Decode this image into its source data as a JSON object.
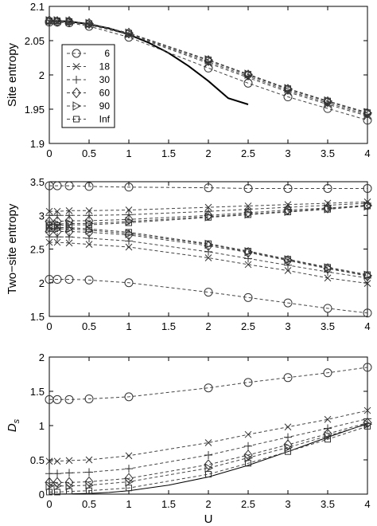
{
  "chart_data": [
    {
      "type": "line",
      "id": "site",
      "ylabel": "Site entropy",
      "xlim": [
        0,
        4
      ],
      "ylim": [
        1.9,
        2.1
      ],
      "xticks": [
        "0",
        "0.5",
        "1",
        "1.5",
        "2",
        "2.5",
        "3",
        "3.5",
        "4"
      ],
      "yticks": [
        "1.9",
        "1.95",
        "2",
        "2.05",
        "2.1"
      ],
      "legend_placement": "top-left",
      "legend": [
        "6",
        "18",
        "30",
        "60",
        "90",
        "Inf"
      ],
      "x": [
        0,
        0.1,
        0.25,
        0.5,
        1,
        2,
        2.5,
        3,
        3.5,
        4
      ],
      "series": [
        {
          "name": "6",
          "marker": "circle",
          "values": [
            2.077,
            2.077,
            2.076,
            2.071,
            2.055,
            2.01,
            1.988,
            1.968,
            1.951,
            1.934
          ]
        },
        {
          "name": "18",
          "marker": "x",
          "values": [
            2.078,
            2.078,
            2.077,
            2.073,
            2.059,
            2.017,
            1.996,
            1.975,
            1.957,
            1.94
          ]
        },
        {
          "name": "30",
          "marker": "plus",
          "values": [
            2.079,
            2.078,
            2.078,
            2.074,
            2.06,
            2.019,
            1.998,
            1.977,
            1.959,
            1.942
          ]
        },
        {
          "name": "60",
          "marker": "diamond",
          "values": [
            2.079,
            2.078,
            2.078,
            2.075,
            2.061,
            2.021,
            2.0,
            1.979,
            1.961,
            1.944
          ]
        },
        {
          "name": "90",
          "marker": "triangle-right",
          "values": [
            2.079,
            2.079,
            2.078,
            2.075,
            2.061,
            2.022,
            2.001,
            1.98,
            1.962,
            1.945
          ]
        },
        {
          "name": "Inf",
          "marker": "square",
          "values": [
            2.079,
            2.079,
            2.078,
            2.075,
            2.061,
            2.022,
            2.001,
            1.98,
            1.962,
            1.945
          ]
        }
      ],
      "solid_curve": {
        "x": [
          0,
          0.25,
          0.5,
          0.75,
          1,
          1.25,
          1.5,
          1.75,
          2,
          2.25,
          2.5
        ],
        "values": [
          2.079,
          2.078,
          2.074,
          2.068,
          2.059,
          2.047,
          2.032,
          2.013,
          1.991,
          1.966,
          1.957
        ]
      }
    },
    {
      "type": "line",
      "id": "two-site",
      "ylabel": "Two−site entropy",
      "xlim": [
        0,
        4
      ],
      "ylim": [
        1.5,
        3.5
      ],
      "xticks": [
        "0",
        "0.5",
        "1",
        "1.5",
        "2",
        "2.5",
        "3",
        "3.5",
        "4"
      ],
      "yticks": [
        "1.5",
        "2",
        "2.5",
        "3",
        "3.5"
      ],
      "x": [
        0,
        0.1,
        0.25,
        0.5,
        1,
        2,
        2.5,
        3,
        3.5,
        4
      ],
      "series": [
        {
          "name": "6",
          "marker": "circle",
          "values": [
            3.44,
            3.44,
            3.44,
            3.43,
            3.42,
            3.41,
            3.4,
            3.4,
            3.4,
            3.4
          ]
        },
        {
          "name": "6",
          "marker": "circle",
          "values": [
            2.05,
            2.05,
            2.05,
            2.04,
            2.0,
            1.86,
            1.78,
            1.7,
            1.62,
            1.55
          ]
        },
        {
          "name": "18",
          "marker": "x",
          "values": [
            3.06,
            3.06,
            3.07,
            3.07,
            3.08,
            3.12,
            3.14,
            3.16,
            3.18,
            3.2
          ]
        },
        {
          "name": "18",
          "marker": "x",
          "values": [
            2.6,
            2.6,
            2.59,
            2.57,
            2.53,
            2.37,
            2.27,
            2.18,
            2.07,
            1.99
          ]
        },
        {
          "name": "30",
          "marker": "plus",
          "values": [
            3.0,
            3.0,
            3.0,
            3.0,
            3.01,
            3.06,
            3.09,
            3.12,
            3.15,
            3.18
          ]
        },
        {
          "name": "30",
          "marker": "plus",
          "values": [
            2.68,
            2.68,
            2.68,
            2.66,
            2.62,
            2.46,
            2.36,
            2.26,
            2.16,
            2.07
          ]
        },
        {
          "name": "60",
          "marker": "diamond",
          "values": [
            2.91,
            2.91,
            2.92,
            2.92,
            2.94,
            3.0,
            3.04,
            3.08,
            3.11,
            3.15
          ]
        },
        {
          "name": "60",
          "marker": "diamond",
          "values": [
            2.76,
            2.76,
            2.76,
            2.75,
            2.71,
            2.55,
            2.45,
            2.33,
            2.21,
            2.1
          ]
        },
        {
          "name": "90",
          "marker": "triangle-right",
          "values": [
            2.87,
            2.87,
            2.88,
            2.88,
            2.91,
            2.98,
            3.02,
            3.06,
            3.1,
            3.14
          ]
        },
        {
          "name": "90",
          "marker": "triangle-right",
          "values": [
            2.8,
            2.8,
            2.8,
            2.78,
            2.73,
            2.57,
            2.46,
            2.34,
            2.22,
            2.11
          ]
        },
        {
          "name": "Inf",
          "marker": "square",
          "values": [
            2.85,
            2.85,
            2.86,
            2.86,
            2.89,
            2.97,
            3.01,
            3.05,
            3.09,
            3.14
          ]
        },
        {
          "name": "Inf",
          "marker": "square",
          "values": [
            2.82,
            2.82,
            2.82,
            2.8,
            2.75,
            2.58,
            2.47,
            2.35,
            2.23,
            2.12
          ]
        }
      ]
    },
    {
      "type": "line",
      "id": "ds",
      "ylabel": "D",
      "ylabel_sub": "s",
      "xlabel": "U",
      "xlim": [
        0,
        4
      ],
      "ylim": [
        0,
        2
      ],
      "xticks": [
        "0",
        "0.5",
        "1",
        "1.5",
        "2",
        "2.5",
        "3",
        "3.5",
        "4"
      ],
      "yticks": [
        "0",
        "0.5",
        "1",
        "1.5",
        "2"
      ],
      "x": [
        0,
        0.1,
        0.25,
        0.5,
        1,
        2,
        2.5,
        3,
        3.5,
        4
      ],
      "series": [
        {
          "name": "6",
          "marker": "circle",
          "values": [
            1.38,
            1.38,
            1.38,
            1.39,
            1.42,
            1.55,
            1.63,
            1.7,
            1.77,
            1.85
          ]
        },
        {
          "name": "18",
          "marker": "x",
          "values": [
            0.48,
            0.48,
            0.49,
            0.5,
            0.56,
            0.75,
            0.87,
            0.98,
            1.09,
            1.22
          ]
        },
        {
          "name": "30",
          "marker": "plus",
          "values": [
            0.3,
            0.3,
            0.31,
            0.32,
            0.37,
            0.57,
            0.7,
            0.83,
            0.96,
            1.1
          ]
        },
        {
          "name": "60",
          "marker": "diamond",
          "values": [
            0.17,
            0.17,
            0.17,
            0.18,
            0.23,
            0.43,
            0.57,
            0.72,
            0.88,
            1.04
          ]
        },
        {
          "name": "90",
          "marker": "triangle-right",
          "values": [
            0.12,
            0.12,
            0.12,
            0.13,
            0.18,
            0.38,
            0.53,
            0.68,
            0.85,
            1.02
          ]
        },
        {
          "name": "Inf",
          "marker": "square",
          "values": [
            0.03,
            0.03,
            0.04,
            0.05,
            0.09,
            0.29,
            0.45,
            0.62,
            0.8,
            0.99
          ]
        }
      ],
      "solid_curve": {
        "x": [
          0,
          0.25,
          0.5,
          0.75,
          1,
          1.5,
          2,
          2.5,
          3,
          3.5,
          4
        ],
        "values": [
          0.0,
          0.002,
          0.01,
          0.025,
          0.05,
          0.13,
          0.25,
          0.42,
          0.62,
          0.83,
          1.03
        ]
      }
    }
  ]
}
